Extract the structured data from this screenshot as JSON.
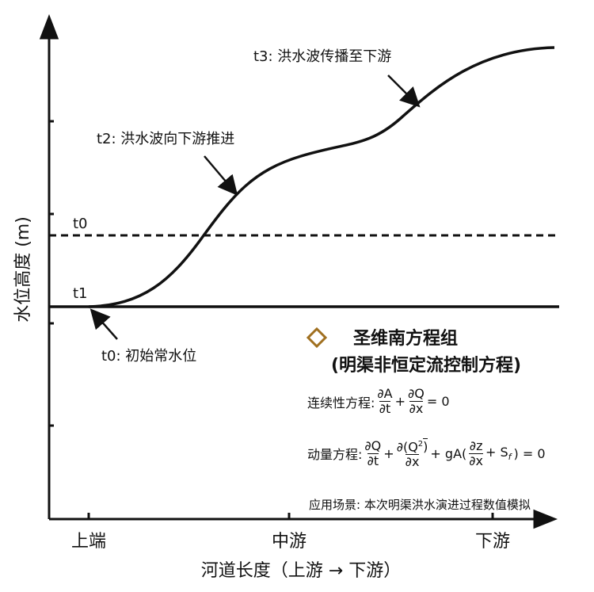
{
  "axes": {
    "y_label": "水位高度 (m)",
    "x_label": "河道长度（上游 → 下游）",
    "x_ticks": [
      "上端",
      "中游",
      "下游"
    ]
  },
  "lines": {
    "t0": "t0",
    "t1": "t1"
  },
  "annotations": [
    "t3: 洪水波传播至下游",
    "t2: 洪水波向下游推进",
    "t0: 初始常水位"
  ],
  "box": {
    "title": "圣维南方程组",
    "subtitle": "(明渠非恒定流控制方程)",
    "continuity": {
      "label": "连续性方程:",
      "n1": "∂A",
      "d1": "∂t",
      "op": "+",
      "n2": "∂Q",
      "d2": "∂x",
      "rest": "= 0"
    },
    "momentum": {
      "label": "动量方程:",
      "n1": "∂Q",
      "d1": "∂t",
      "op1": "+",
      "n2": "∂(Q",
      "sup": "2",
      ")": ")",
      "d2": "∂x",
      "op2": "+ gA(",
      "n3": "∂z",
      "d3": "∂x",
      "op3": "+ S",
      "sub": "f",
      "rest": ") = 0"
    },
    "application": "应用场景: 本次明渠洪水演进过程数值模拟"
  }
}
